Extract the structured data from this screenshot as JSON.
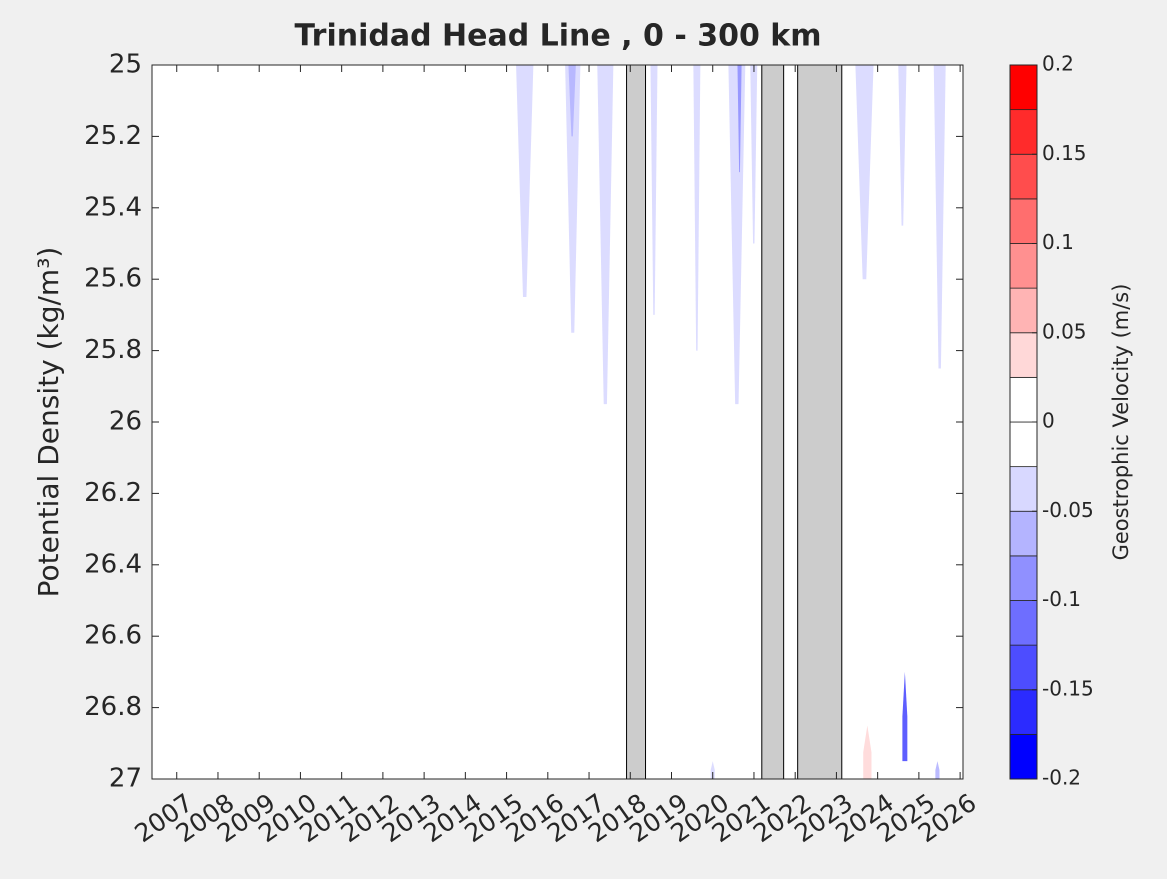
{
  "chart_data": {
    "type": "contour",
    "title": "Trinidad Head Line , 0 - 300 km",
    "y_label": "Potential Density (kg/m³)",
    "colorbar_label": "Geostrophic Velocity (m/s)",
    "xlim": [
      2006.4,
      2026.07
    ],
    "xticks": [
      2007,
      2008,
      2009,
      2010,
      2011,
      2012,
      2013,
      2014,
      2015,
      2016,
      2017,
      2018,
      2019,
      2020,
      2021,
      2022,
      2023,
      2024,
      2025,
      2026
    ],
    "ylim": [
      25,
      27
    ],
    "y_reversed": true,
    "yticks": [
      25,
      25.2,
      25.4,
      25.6,
      25.8,
      26,
      26.2,
      26.4,
      26.6,
      26.8,
      27
    ],
    "clim": [
      -0.2,
      0.2
    ],
    "cticks": [
      -0.2,
      -0.15,
      -0.1,
      -0.05,
      0,
      0.05,
      0.1,
      0.15,
      0.2
    ],
    "colormap": [
      "#0000ff",
      "#2b2bff",
      "#4d4dff",
      "#6e6eff",
      "#9090ff",
      "#b4b4ff",
      "#d8d8ff",
      "#ffffff",
      "#ffffff",
      "#ffd8d8",
      "#ffb4b4",
      "#ff9090",
      "#ff6e6e",
      "#ff4d4d",
      "#ff2b2b",
      "#ff0000"
    ],
    "no_data_color": "#cccccc",
    "no_data_periods": [
      [
        2017.91,
        2018.37
      ],
      [
        2021.19,
        2021.72
      ],
      [
        2022.06,
        2023.13
      ]
    ],
    "features": [
      {
        "x": [
          2015.23,
          2015.65
        ],
        "density": [
          25,
          25.65
        ],
        "value": -0.03
      },
      {
        "x": [
          2016.42,
          2016.79
        ],
        "density": [
          25,
          25.75
        ],
        "value": -0.03
      },
      {
        "x": [
          2016.5,
          2016.68
        ],
        "density": [
          25,
          25.2
        ],
        "value": -0.06
      },
      {
        "x": [
          2017.2,
          2017.59
        ],
        "density": [
          25,
          25.95
        ],
        "value": -0.03
      },
      {
        "x": [
          2018.49,
          2018.66
        ],
        "density": [
          25,
          25.7
        ],
        "value": -0.03
      },
      {
        "x": [
          2019.53,
          2019.7
        ],
        "density": [
          25,
          25.8
        ],
        "value": -0.03
      },
      {
        "x": [
          2020.38,
          2020.79
        ],
        "density": [
          25,
          25.95
        ],
        "value": -0.03
      },
      {
        "x": [
          2020.6,
          2020.7
        ],
        "density": [
          25,
          25.3
        ],
        "value": -0.08
      },
      {
        "x": [
          2020.91,
          2021.08
        ],
        "density": [
          25,
          25.5
        ],
        "value": -0.03
      },
      {
        "x": [
          2023.46,
          2023.9
        ],
        "density": [
          25,
          25.6
        ],
        "value": -0.03
      },
      {
        "x": [
          2024.5,
          2024.7
        ],
        "density": [
          25,
          25.45
        ],
        "value": -0.03
      },
      {
        "x": [
          2025.36,
          2025.65
        ],
        "density": [
          25,
          25.85
        ],
        "value": -0.03
      },
      {
        "x": [
          2023.65,
          2023.85
        ],
        "density": [
          26.85,
          27
        ],
        "value": 0.03
      },
      {
        "x": [
          2024.6,
          2024.72
        ],
        "density": [
          26.7,
          26.95
        ],
        "value": -0.15
      },
      {
        "x": [
          2019.95,
          2020.05
        ],
        "density": [
          26.95,
          27
        ],
        "value": -0.04
      },
      {
        "x": [
          2025.4,
          2025.5
        ],
        "density": [
          26.95,
          27
        ],
        "value": -0.06
      }
    ]
  }
}
